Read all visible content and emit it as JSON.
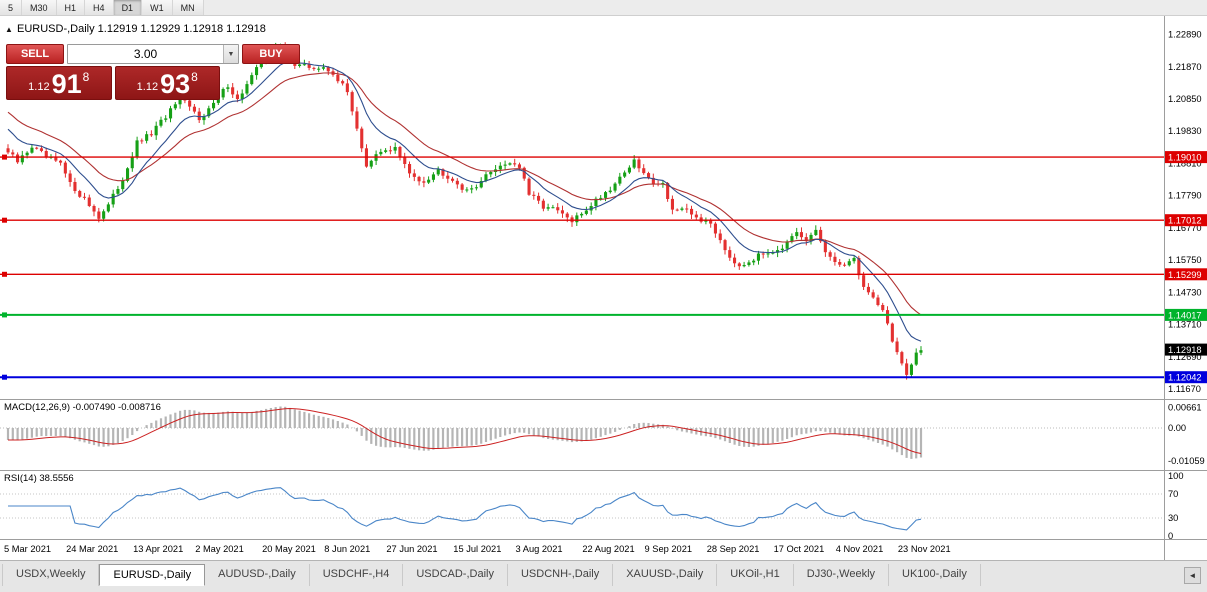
{
  "toolbar": {
    "timeframes": [
      {
        "label": "5",
        "active": false
      },
      {
        "label": "M30",
        "active": false
      },
      {
        "label": "H1",
        "active": false
      },
      {
        "label": "H4",
        "active": false
      },
      {
        "label": "D1",
        "active": true
      },
      {
        "label": "W1",
        "active": false
      },
      {
        "label": "MN",
        "active": false
      }
    ]
  },
  "chart_header": {
    "collapse_icon": "▲",
    "title": "EURUSD-,Daily 1.12919 1.12929 1.12918 1.12918"
  },
  "trade_panel": {
    "sell_label": "SELL",
    "buy_label": "BUY",
    "volume": "3.00",
    "volume_dropdown_icon": "▼",
    "sell_price": {
      "prefix": "1.12",
      "big": "91",
      "sup": "8"
    },
    "buy_price": {
      "prefix": "1.12",
      "big": "93",
      "sup": "8"
    }
  },
  "chart_data": {
    "type": "candlestick",
    "title": "EURUSD-,Daily",
    "quote": {
      "open": "1.12919",
      "high": "1.12929",
      "low": "1.12918",
      "close": "1.12918"
    },
    "ylim": [
      1.1148,
      1.2335
    ],
    "candle_count": 192,
    "candle_up_color": "#16a016",
    "candle_down_color": "#e33030",
    "y_ticks": [
      1.2289,
      1.2187,
      1.2085,
      1.1983,
      1.1881,
      1.1779,
      1.1677,
      1.1575,
      1.1473,
      1.1371,
      1.1269,
      1.1167
    ],
    "y_tick_labels": [
      "1.22890",
      "1.21870",
      "1.20850",
      "1.19830",
      "1.18810",
      "1.17790",
      "1.16770",
      "1.15750",
      "1.14730",
      "1.13710",
      "1.12690",
      "1.11670"
    ],
    "x_labels": [
      {
        "index": 0,
        "label": "5 Mar 2021"
      },
      {
        "index": 13,
        "label": "24 Mar 2021"
      },
      {
        "index": 27,
        "label": "13 Apr 2021"
      },
      {
        "index": 40,
        "label": "2 May 2021"
      },
      {
        "index": 54,
        "label": "20 May 2021"
      },
      {
        "index": 67,
        "label": "8 Jun 2021"
      },
      {
        "index": 80,
        "label": "27 Jun 2021"
      },
      {
        "index": 94,
        "label": "15 Jul 2021"
      },
      {
        "index": 107,
        "label": "3 Aug 2021"
      },
      {
        "index": 121,
        "label": "22 Aug 2021"
      },
      {
        "index": 134,
        "label": "9 Sep 2021"
      },
      {
        "index": 147,
        "label": "28 Sep 2021"
      },
      {
        "index": 161,
        "label": "17 Oct 2021"
      },
      {
        "index": 174,
        "label": "4 Nov 2021"
      },
      {
        "index": 187,
        "label": "23 Nov 2021"
      }
    ],
    "close_path": [
      [
        0,
        1.1916
      ],
      [
        2,
        1.1885
      ],
      [
        5,
        1.1935
      ],
      [
        8,
        1.19
      ],
      [
        11,
        1.1878
      ],
      [
        13,
        1.1815
      ],
      [
        16,
        1.1768
      ],
      [
        19,
        1.1712
      ],
      [
        21,
        1.1748
      ],
      [
        24,
        1.1832
      ],
      [
        27,
        1.1945
      ],
      [
        30,
        1.1975
      ],
      [
        33,
        1.203
      ],
      [
        36,
        1.2085
      ],
      [
        38,
        1.2058
      ],
      [
        40,
        1.2025
      ],
      [
        43,
        1.2068
      ],
      [
        46,
        1.213
      ],
      [
        48,
        1.2082
      ],
      [
        51,
        1.2155
      ],
      [
        54,
        1.2225
      ],
      [
        57,
        1.2251
      ],
      [
        60,
        1.2196
      ],
      [
        63,
        1.2185
      ],
      [
        66,
        1.218
      ],
      [
        68,
        1.2168
      ],
      [
        71,
        1.2105
      ],
      [
        73,
        1.1996
      ],
      [
        75,
        1.1866
      ],
      [
        77,
        1.1905
      ],
      [
        79,
        1.1924
      ],
      [
        81,
        1.193
      ],
      [
        84,
        1.1846
      ],
      [
        87,
        1.1826
      ],
      [
        90,
        1.186
      ],
      [
        93,
        1.1832
      ],
      [
        96,
        1.179
      ],
      [
        99,
        1.1826
      ],
      [
        102,
        1.1868
      ],
      [
        105,
        1.1886
      ],
      [
        107,
        1.187
      ],
      [
        109,
        1.1782
      ],
      [
        112,
        1.1746
      ],
      [
        115,
        1.173
      ],
      [
        118,
        1.1696
      ],
      [
        120,
        1.1722
      ],
      [
        123,
        1.1766
      ],
      [
        126,
        1.1802
      ],
      [
        129,
        1.1856
      ],
      [
        131,
        1.1886
      ],
      [
        134,
        1.183
      ],
      [
        137,
        1.1816
      ],
      [
        139,
        1.1736
      ],
      [
        142,
        1.1728
      ],
      [
        145,
        1.1702
      ],
      [
        147,
        1.169
      ],
      [
        149,
        1.164
      ],
      [
        151,
        1.1586
      ],
      [
        153,
        1.156
      ],
      [
        156,
        1.158
      ],
      [
        159,
        1.1602
      ],
      [
        162,
        1.1616
      ],
      [
        165,
        1.1656
      ],
      [
        167,
        1.1632
      ],
      [
        169,
        1.167
      ],
      [
        171,
        1.1602
      ],
      [
        173,
        1.156
      ],
      [
        175,
        1.1566
      ],
      [
        177,
        1.1576
      ],
      [
        179,
        1.149
      ],
      [
        181,
        1.1456
      ],
      [
        183,
        1.142
      ],
      [
        185,
        1.1322
      ],
      [
        187,
        1.1246
      ],
      [
        188,
        1.1206
      ],
      [
        189,
        1.1236
      ],
      [
        190,
        1.128
      ],
      [
        191,
        1.1292
      ]
    ],
    "hlines": [
      {
        "price": 1.1901,
        "label": "1.19010",
        "color": "#dd0000",
        "width": 1.4
      },
      {
        "price": 1.17012,
        "label": "1.17012",
        "color": "#dd0000",
        "width": 1.4
      },
      {
        "price": 1.15299,
        "label": "1.15299",
        "color": "#dd0000",
        "width": 1.4
      },
      {
        "price": 1.14017,
        "label": "1.14017",
        "color": "#00b32c",
        "width": 2
      },
      {
        "price": 1.12042,
        "label": "1.12042",
        "color": "#0000dd",
        "width": 2
      }
    ],
    "current_price": {
      "price": 1.12918,
      "label": "1.12918",
      "bg": "#000000"
    },
    "moving_averages": [
      {
        "period": 10,
        "type": "ema",
        "color": "#2e4e8e"
      },
      {
        "period": 21,
        "type": "ema",
        "color": "#b03232"
      }
    ],
    "indicators": [
      {
        "name": "macd",
        "label": "MACD(12,26,9) -0.007490 -0.008716",
        "params": [
          12,
          26,
          9
        ],
        "values_text": [
          "-0.007490",
          "-0.008716"
        ],
        "vlim": [
          -0.0125,
          0.008
        ],
        "axis_labels": [
          {
            "value": 0.00661,
            "label": "0.00661"
          },
          {
            "value": 0,
            "label": "0.00"
          },
          {
            "value": -0.01059,
            "label": "-0.01059"
          }
        ],
        "histogram_color": "#b5b5b5",
        "signal_color": "#cc2222"
      },
      {
        "name": "rsi",
        "label": "RSI(14) 38.5556",
        "period": 14,
        "value": 38.5556,
        "levels": [
          70,
          30
        ],
        "axis_labels": [
          {
            "value": 100,
            "label": "100"
          },
          {
            "value": 70,
            "label": "70"
          },
          {
            "value": 30,
            "label": "30"
          },
          {
            "value": 0,
            "label": "0"
          }
        ],
        "line_color": "#4a86c8"
      }
    ]
  },
  "bottom_tabs": {
    "tabs": [
      {
        "label": "USDX,Weekly",
        "active": false
      },
      {
        "label": "EURUSD-,Daily",
        "active": true
      },
      {
        "label": "AUDUSD-,Daily",
        "active": false
      },
      {
        "label": "USDCHF-,H4",
        "active": false
      },
      {
        "label": "USDCAD-,Daily",
        "active": false
      },
      {
        "label": "USDCNH-,Daily",
        "active": false
      },
      {
        "label": "XAUUSD-,Daily",
        "active": false
      },
      {
        "label": "UKOil-,H1",
        "active": false
      },
      {
        "label": "DJ30-,Weekly",
        "active": false
      },
      {
        "label": "UK100-,Daily",
        "active": false
      }
    ],
    "scroll_icon": "◄"
  }
}
